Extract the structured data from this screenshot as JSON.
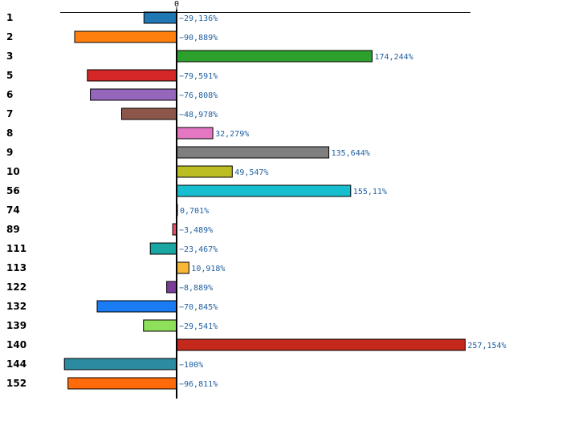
{
  "chart_data": {
    "type": "bar",
    "orientation": "horizontal",
    "title": "",
    "xlabel": "",
    "ylabel": "",
    "xlim": [
      -100,
      257.154
    ],
    "zero_tick_label": "0",
    "categories": [
      "1",
      "2",
      "3",
      "5",
      "6",
      "7",
      "8",
      "9",
      "10",
      "56",
      "74",
      "89",
      "111",
      "113",
      "122",
      "132",
      "139",
      "140",
      "144",
      "152"
    ],
    "values": [
      -29.136,
      -90.889,
      174.244,
      -79.591,
      -76.808,
      -48.978,
      32.279,
      135.644,
      49.547,
      155.11,
      0.701,
      -3.489,
      -23.467,
      10.918,
      -8.889,
      -70.845,
      -29.541,
      257.154,
      -100,
      -96.811
    ],
    "value_labels": [
      "−29,136%",
      "−90,889%",
      "174,244%",
      "−79,591%",
      "−76,808%",
      "−48,978%",
      "32,279%",
      "135,644%",
      "49,547%",
      "155,11%",
      "0,701%",
      "−3,489%",
      "−23,467%",
      "10,918%",
      "−8,889%",
      "−70,845%",
      "−29,541%",
      "257,154%",
      "−100%",
      "−96,811%"
    ],
    "colors": [
      "#1f77b4",
      "#ff7f0e",
      "#2ca02c",
      "#d62728",
      "#9467bd",
      "#8c564b",
      "#e377c2",
      "#7f7f7f",
      "#bcbd22",
      "#17becf",
      "#1a55e0",
      "#f0506e",
      "#19a7a3",
      "#f8b734",
      "#7b3c9a",
      "#1a7cf5",
      "#8ee05a",
      "#c4291c",
      "#2b8ba0",
      "#ff6a0a"
    ]
  }
}
